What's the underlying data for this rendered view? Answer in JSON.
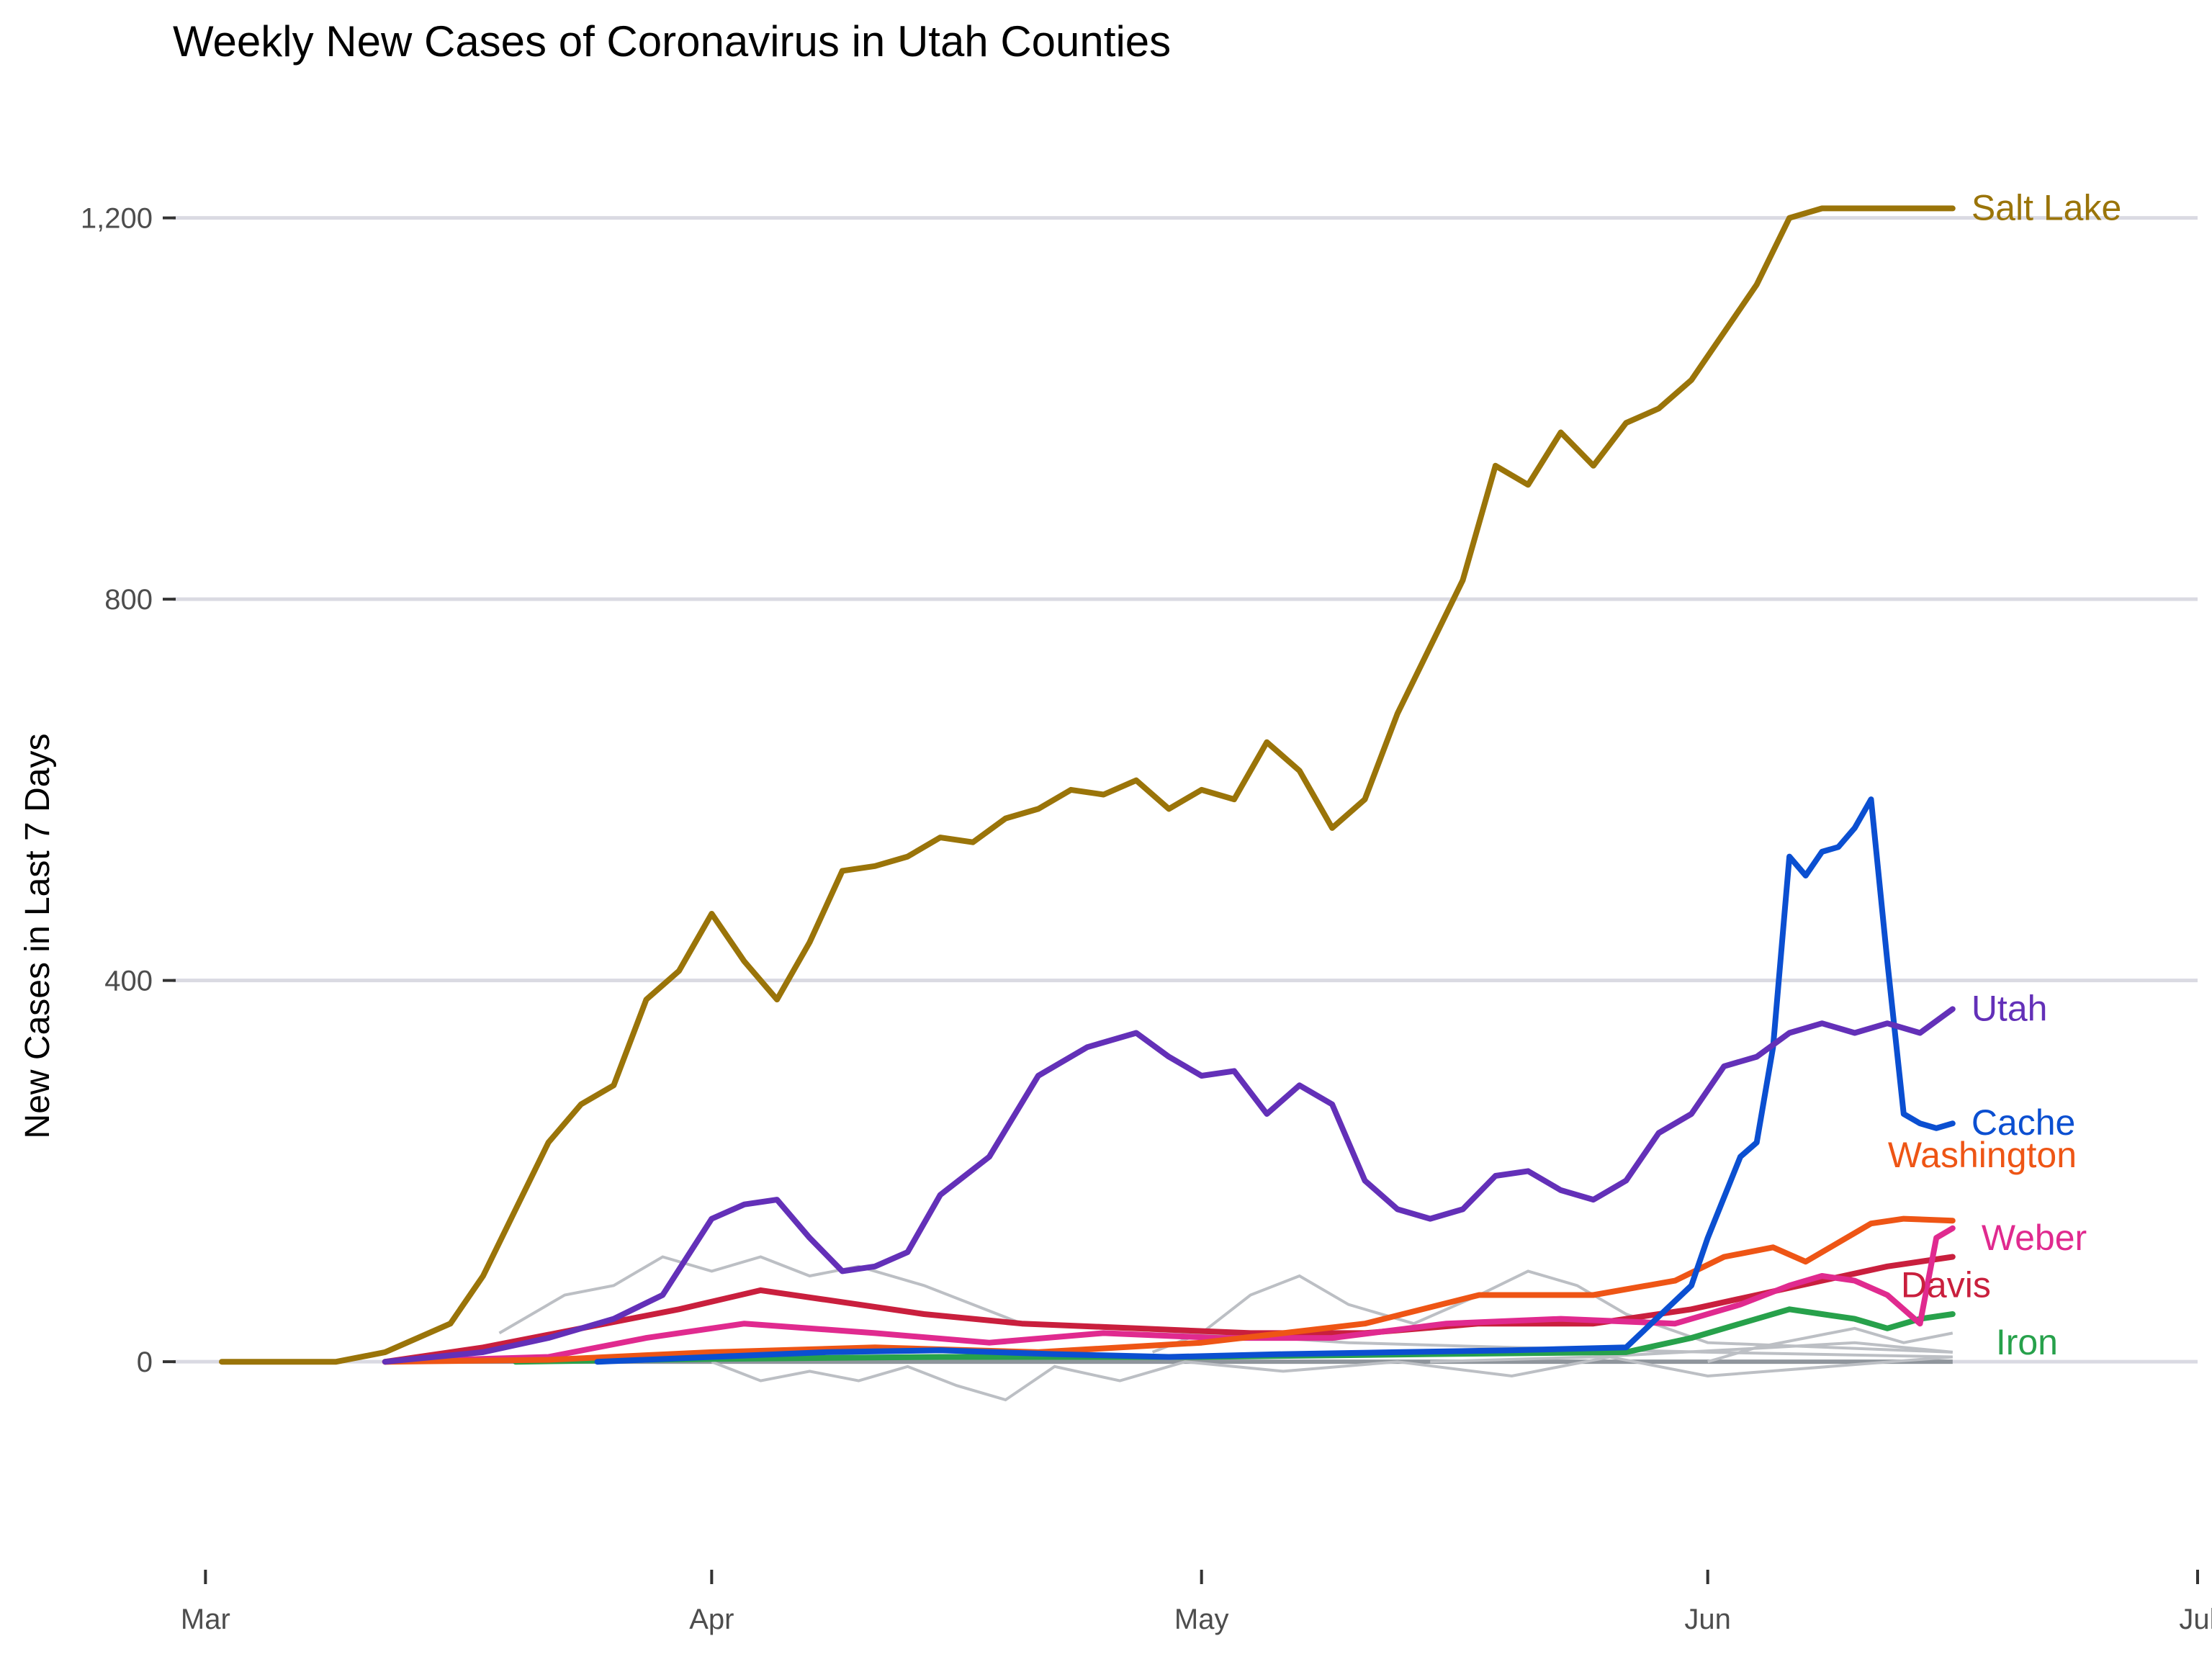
{
  "chart_data": {
    "type": "line",
    "title": "Weekly New Cases of Coronavirus in Utah Counties",
    "xlabel": "",
    "ylabel": "New Cases in Last 7 Days",
    "x_ticks": [
      "Mar",
      "Apr",
      "May",
      "Jun",
      "Jul"
    ],
    "y_ticks": [
      "0",
      "400",
      "800",
      "1,200"
    ],
    "y_tick_values": [
      0,
      400,
      800,
      1200
    ],
    "ylim": [
      -120,
      1270
    ],
    "xlim": [
      "2020-02-28",
      "2020-07-01"
    ],
    "grid": true,
    "legend": "direct labels at line ends",
    "series": [
      {
        "name": "Salt Lake",
        "color": "#9a7409",
        "x": [
          "2020-03-02",
          "2020-03-09",
          "2020-03-12",
          "2020-03-14",
          "2020-03-16",
          "2020-03-18",
          "2020-03-20",
          "2020-03-22",
          "2020-03-24",
          "2020-03-26",
          "2020-03-28",
          "2020-03-30",
          "2020-04-01",
          "2020-04-03",
          "2020-04-05",
          "2020-04-07",
          "2020-04-09",
          "2020-04-11",
          "2020-04-13",
          "2020-04-15",
          "2020-04-17",
          "2020-04-19",
          "2020-04-21",
          "2020-04-23",
          "2020-04-25",
          "2020-04-27",
          "2020-04-29",
          "2020-05-01",
          "2020-05-03",
          "2020-05-05",
          "2020-05-07",
          "2020-05-09",
          "2020-05-11",
          "2020-05-13",
          "2020-05-15",
          "2020-05-17",
          "2020-05-19",
          "2020-05-21",
          "2020-05-23",
          "2020-05-25",
          "2020-05-27",
          "2020-05-29",
          "2020-05-31",
          "2020-06-02",
          "2020-06-04",
          "2020-06-06",
          "2020-06-08",
          "2020-06-10",
          "2020-06-12",
          "2020-06-14",
          "2020-06-16"
        ],
        "y": [
          0,
          0,
          10,
          25,
          40,
          90,
          160,
          230,
          270,
          290,
          380,
          410,
          470,
          420,
          380,
          440,
          515,
          520,
          530,
          550,
          545,
          570,
          580,
          600,
          595,
          610,
          580,
          600,
          590,
          650,
          620,
          560,
          590,
          680,
          750,
          820,
          940,
          920,
          975,
          940,
          985,
          1000,
          1030,
          1080,
          1130,
          1200,
          1210,
          1210,
          1210,
          1210,
          1210
        ]
      },
      {
        "name": "Utah",
        "color": "#6330b8",
        "x": [
          "2020-03-12",
          "2020-03-18",
          "2020-03-22",
          "2020-03-26",
          "2020-03-29",
          "2020-04-01",
          "2020-04-03",
          "2020-04-05",
          "2020-04-07",
          "2020-04-09",
          "2020-04-11",
          "2020-04-13",
          "2020-04-15",
          "2020-04-18",
          "2020-04-21",
          "2020-04-24",
          "2020-04-27",
          "2020-04-29",
          "2020-05-01",
          "2020-05-03",
          "2020-05-05",
          "2020-05-07",
          "2020-05-09",
          "2020-05-11",
          "2020-05-13",
          "2020-05-15",
          "2020-05-17",
          "2020-05-19",
          "2020-05-21",
          "2020-05-23",
          "2020-05-25",
          "2020-05-27",
          "2020-05-29",
          "2020-05-31",
          "2020-06-02",
          "2020-06-04",
          "2020-06-06",
          "2020-06-08",
          "2020-06-10",
          "2020-06-12",
          "2020-06-14",
          "2020-06-16"
        ],
        "y": [
          0,
          10,
          25,
          45,
          70,
          150,
          165,
          170,
          130,
          95,
          100,
          115,
          175,
          215,
          300,
          330,
          345,
          320,
          300,
          305,
          260,
          290,
          270,
          190,
          160,
          150,
          160,
          195,
          200,
          180,
          170,
          190,
          240,
          260,
          310,
          320,
          345,
          355,
          345,
          355,
          345,
          370
        ]
      },
      {
        "name": "Cache",
        "color": "#0b4fd1",
        "x": [
          "2020-03-25",
          "2020-04-01",
          "2020-04-08",
          "2020-04-15",
          "2020-04-22",
          "2020-04-29",
          "2020-05-06",
          "2020-05-13",
          "2020-05-20",
          "2020-05-27",
          "2020-05-31",
          "2020-06-01",
          "2020-06-03",
          "2020-06-04",
          "2020-06-05",
          "2020-06-06",
          "2020-06-07",
          "2020-06-08",
          "2020-06-09",
          "2020-06-10",
          "2020-06-11",
          "2020-06-12",
          "2020-06-13",
          "2020-06-14",
          "2020-06-15",
          "2020-06-16"
        ],
        "y": [
          0,
          5,
          10,
          12,
          8,
          5,
          8,
          10,
          12,
          15,
          80,
          130,
          215,
          230,
          330,
          530,
          510,
          535,
          540,
          560,
          590,
          420,
          260,
          250,
          245,
          250
        ]
      },
      {
        "name": "Washington",
        "color": "#ee5515",
        "x": [
          "2020-03-12",
          "2020-03-22",
          "2020-04-01",
          "2020-04-11",
          "2020-04-21",
          "2020-05-01",
          "2020-05-11",
          "2020-05-18",
          "2020-05-25",
          "2020-05-30",
          "2020-06-02",
          "2020-06-05",
          "2020-06-07",
          "2020-06-09",
          "2020-06-11",
          "2020-06-13",
          "2020-06-16"
        ],
        "y": [
          0,
          2,
          10,
          15,
          10,
          20,
          40,
          70,
          70,
          85,
          110,
          120,
          105,
          125,
          145,
          150,
          148
        ]
      },
      {
        "name": "Weber",
        "color": "#e02a8f",
        "x": [
          "2020-03-12",
          "2020-03-22",
          "2020-03-28",
          "2020-04-03",
          "2020-04-11",
          "2020-04-18",
          "2020-04-25",
          "2020-05-02",
          "2020-05-09",
          "2020-05-16",
          "2020-05-23",
          "2020-05-30",
          "2020-06-03",
          "2020-06-06",
          "2020-06-08",
          "2020-06-10",
          "2020-06-12",
          "2020-06-14",
          "2020-06-15",
          "2020-06-16"
        ],
        "y": [
          0,
          5,
          25,
          40,
          30,
          20,
          30,
          25,
          25,
          40,
          45,
          40,
          60,
          80,
          90,
          85,
          70,
          40,
          130,
          140
        ]
      },
      {
        "name": "Davis",
        "color": "#c91f3d",
        "x": [
          "2020-03-12",
          "2020-03-18",
          "2020-03-24",
          "2020-03-30",
          "2020-04-04",
          "2020-04-08",
          "2020-04-14",
          "2020-04-20",
          "2020-04-27",
          "2020-05-04",
          "2020-05-11",
          "2020-05-18",
          "2020-05-25",
          "2020-05-31",
          "2020-06-04",
          "2020-06-08",
          "2020-06-12",
          "2020-06-16"
        ],
        "y": [
          0,
          15,
          35,
          55,
          75,
          65,
          50,
          40,
          35,
          30,
          30,
          40,
          40,
          55,
          70,
          85,
          100,
          110
        ]
      },
      {
        "name": "Iron",
        "color": "#27a14b",
        "x": [
          "2020-03-20",
          "2020-04-01",
          "2020-04-15",
          "2020-05-01",
          "2020-05-15",
          "2020-05-27",
          "2020-05-31",
          "2020-06-03",
          "2020-06-06",
          "2020-06-08",
          "2020-06-10",
          "2020-06-12",
          "2020-06-14",
          "2020-06-16"
        ],
        "y": [
          0,
          3,
          5,
          5,
          8,
          10,
          25,
          40,
          55,
          50,
          45,
          35,
          45,
          50
        ]
      }
    ],
    "background_series": [
      {
        "x": [
          "2020-03-19",
          "2020-03-23",
          "2020-03-26",
          "2020-03-29",
          "2020-04-01",
          "2020-04-04",
          "2020-04-07",
          "2020-04-10",
          "2020-04-14",
          "2020-04-20",
          "2020-05-01",
          "2020-05-10",
          "2020-05-20",
          "2020-06-01",
          "2020-06-16"
        ],
        "y": [
          30,
          70,
          80,
          110,
          95,
          110,
          90,
          100,
          80,
          40,
          30,
          20,
          15,
          10,
          5
        ]
      },
      {
        "x": [
          "2020-04-28",
          "2020-05-01",
          "2020-05-04",
          "2020-05-07",
          "2020-05-10",
          "2020-05-14",
          "2020-05-18",
          "2020-05-21",
          "2020-05-24",
          "2020-05-27",
          "2020-06-01",
          "2020-06-16"
        ],
        "y": [
          10,
          30,
          70,
          90,
          60,
          40,
          70,
          95,
          80,
          50,
          20,
          10
        ]
      },
      {
        "x": [
          "2020-04-01",
          "2020-04-04",
          "2020-04-07",
          "2020-04-10",
          "2020-04-13",
          "2020-04-16",
          "2020-04-19",
          "2020-04-22",
          "2020-04-26",
          "2020-04-30",
          "2020-05-06",
          "2020-05-13",
          "2020-05-20",
          "2020-05-26",
          "2020-06-01",
          "2020-06-16"
        ],
        "y": [
          0,
          -20,
          -10,
          -20,
          -5,
          -25,
          -40,
          -5,
          -20,
          0,
          -10,
          0,
          -15,
          5,
          -15,
          5
        ]
      },
      {
        "x": [
          "2020-06-01",
          "2020-06-04",
          "2020-06-07",
          "2020-06-10",
          "2020-06-13",
          "2020-06-16"
        ],
        "y": [
          0,
          15,
          25,
          35,
          20,
          30
        ]
      },
      {
        "x": [
          "2020-05-15",
          "2020-05-25",
          "2020-06-05",
          "2020-06-10",
          "2020-06-16"
        ],
        "y": [
          0,
          5,
          15,
          20,
          10
        ]
      }
    ]
  }
}
